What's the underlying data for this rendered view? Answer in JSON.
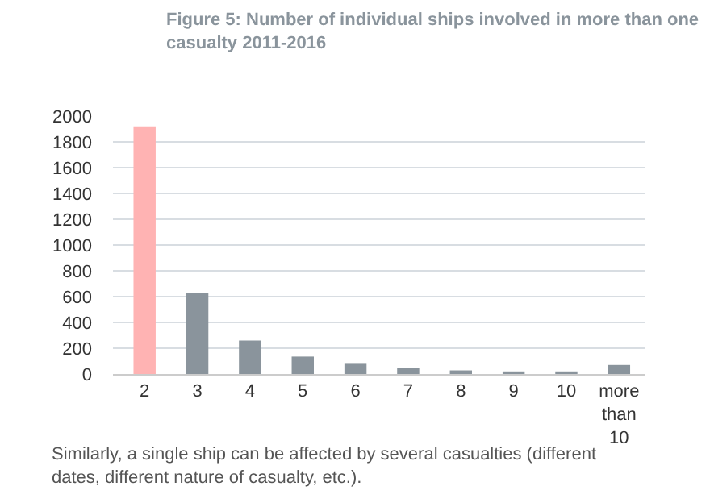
{
  "chart_data": {
    "type": "bar",
    "title": "Figure 5: Number of individual ships involved in more than one casualty 2011-2016",
    "categories": [
      "2",
      "3",
      "4",
      "5",
      "6",
      "7",
      "8",
      "9",
      "10",
      "more than 10"
    ],
    "values": [
      1920,
      630,
      260,
      135,
      85,
      45,
      28,
      20,
      20,
      70
    ],
    "colors": [
      "#ffb3b3",
      "#8a949c",
      "#8a949c",
      "#8a949c",
      "#8a949c",
      "#8a949c",
      "#8a949c",
      "#8a949c",
      "#8a949c",
      "#8a949c"
    ],
    "ylim": [
      0,
      2000
    ],
    "yticks": [
      0,
      200,
      400,
      600,
      800,
      1000,
      1200,
      1400,
      1600,
      1800,
      2000
    ],
    "grid": "y",
    "annotations": [
      "Similarly, a single ship can be affected by several casualties (different dates, different nature of casualty, etc.)."
    ]
  }
}
